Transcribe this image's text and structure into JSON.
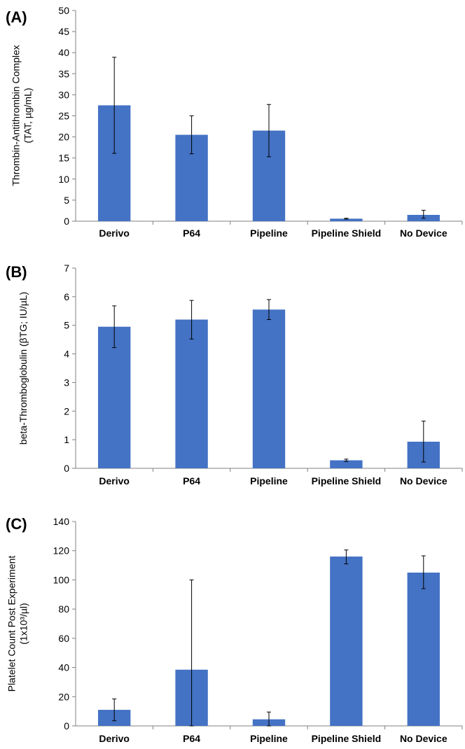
{
  "chart_data": [
    {
      "type": "bar",
      "panel_label": "(A)",
      "categories": [
        "Derivo",
        "P64",
        "Pipeline",
        "Pipeline Shield",
        "No Device"
      ],
      "values": [
        27.5,
        20.5,
        21.5,
        0.6,
        1.5
      ],
      "error_low": [
        16.1,
        16.0,
        15.3,
        0.5,
        0.7
      ],
      "error_high": [
        38.9,
        25.0,
        27.7,
        0.7,
        2.6
      ],
      "ylabel_lines": [
        "Thrombin-Antithrombin Complex",
        "(TAT, µg/mL)"
      ],
      "ylim": [
        0,
        50
      ],
      "yticks": [
        0,
        5,
        10,
        15,
        20,
        25,
        30,
        35,
        40,
        45,
        50
      ],
      "color": "#4472c4"
    },
    {
      "type": "bar",
      "panel_label": "(B)",
      "categories": [
        "Derivo",
        "P64",
        "Pipeline",
        "Pipeline Shield",
        "No Device"
      ],
      "values": [
        4.95,
        5.2,
        5.55,
        0.28,
        0.93
      ],
      "error_low": [
        4.22,
        4.52,
        5.2,
        0.24,
        0.22
      ],
      "error_high": [
        5.68,
        5.87,
        5.9,
        0.32,
        1.65
      ],
      "ylabel_lines": [
        "beta-Thromboglobulin  (βTG; IU/µL)"
      ],
      "ylim": [
        0,
        7
      ],
      "yticks": [
        0,
        1,
        2,
        3,
        4,
        5,
        6,
        7
      ],
      "color": "#4472c4"
    },
    {
      "type": "bar",
      "panel_label": "(C)",
      "categories": [
        "Derivo",
        "P64",
        "Pipeline",
        "Pipeline Shield",
        "No Device"
      ],
      "values": [
        11,
        38.5,
        4.5,
        116,
        105
      ],
      "error_low": [
        3.5,
        0,
        0,
        111,
        94
      ],
      "error_high": [
        18.5,
        100,
        9.5,
        120.5,
        116.5
      ],
      "ylabel_lines": [
        "Platelet Count Post Experiment",
        "(1x10³/µl)"
      ],
      "ylim": [
        0,
        140
      ],
      "yticks": [
        0,
        20,
        40,
        60,
        80,
        100,
        120,
        140
      ],
      "color": "#4472c4"
    }
  ]
}
